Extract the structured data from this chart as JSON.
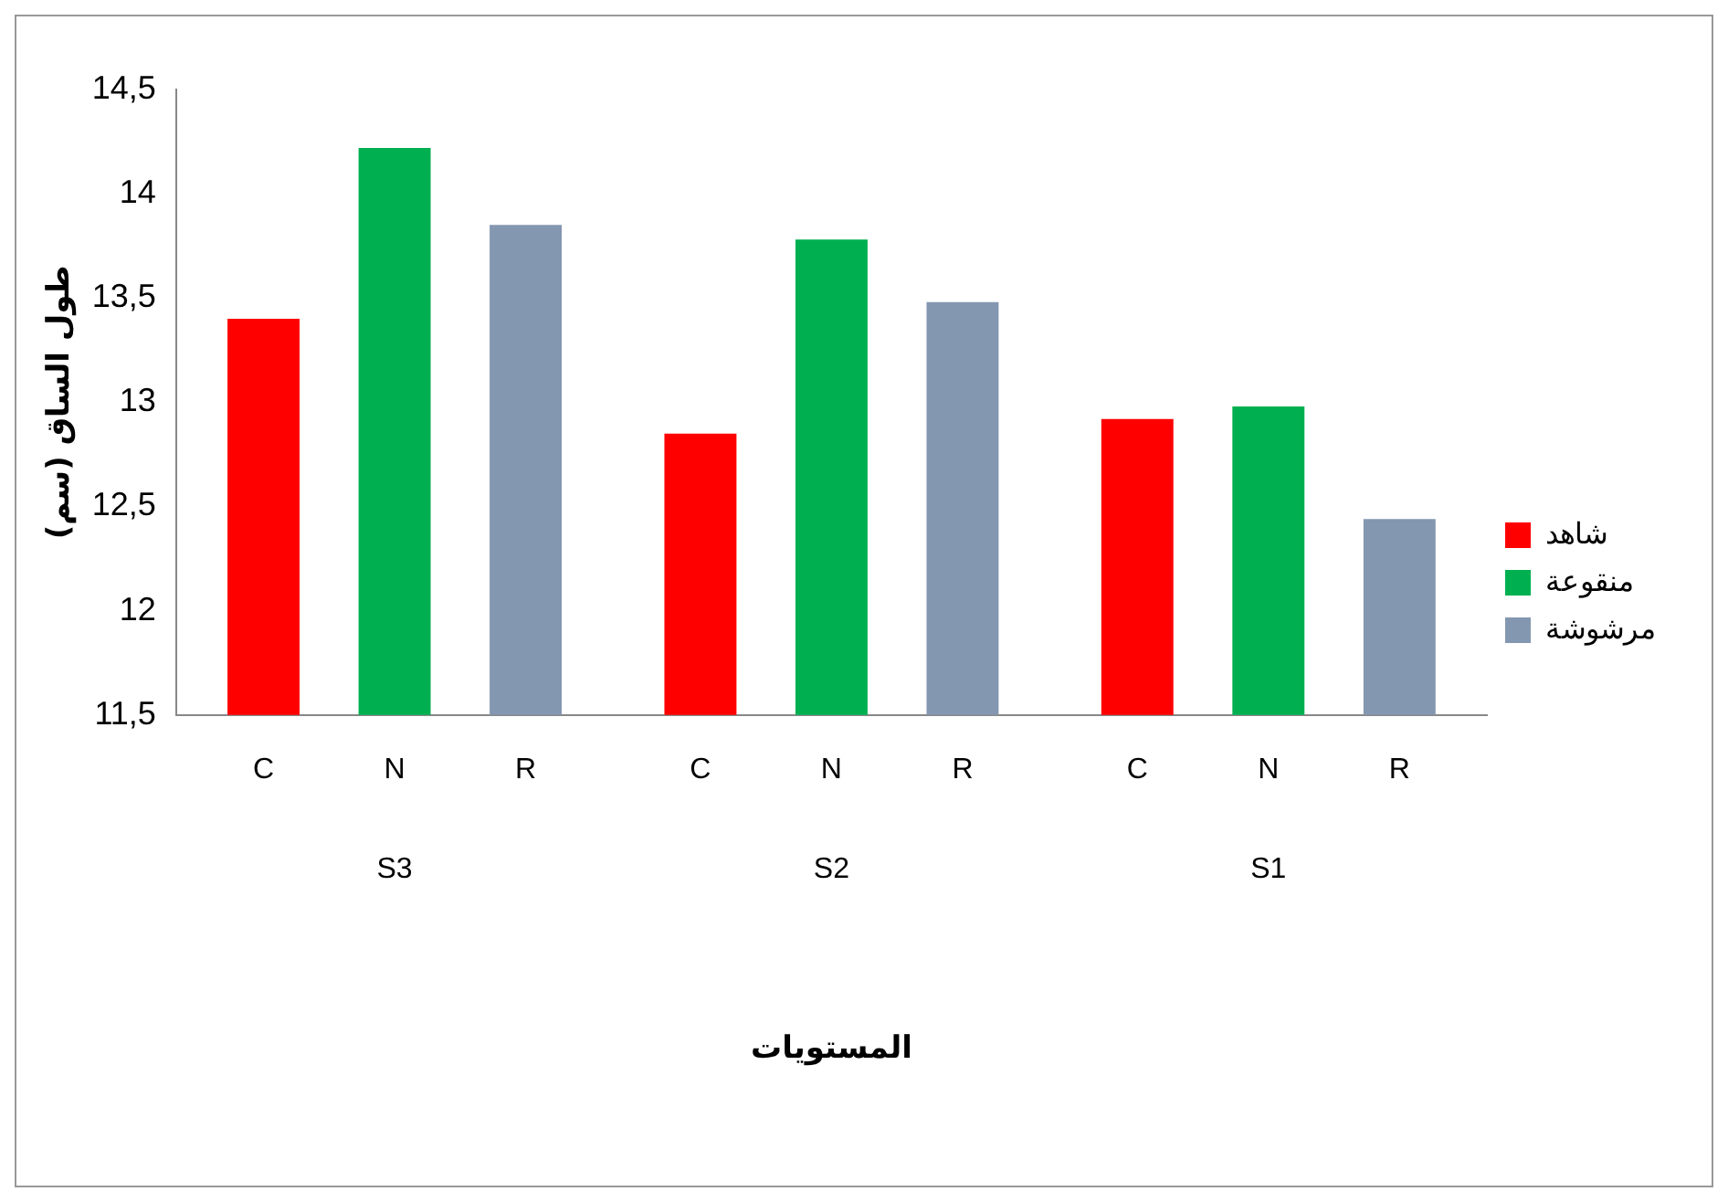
{
  "chart_data": {
    "type": "bar",
    "xlabel": "المستويات",
    "ylabel": "طول الساق (سم)",
    "categories": [
      "S3",
      "S2",
      "S1"
    ],
    "series": [
      {
        "name": "شاهد",
        "color": "#ff0000",
        "values": [
          13.4,
          12.85,
          12.92
        ]
      },
      {
        "name": "منقوعة",
        "color": "#00b050",
        "values": [
          14.22,
          13.78,
          12.98
        ]
      },
      {
        "name": "مرشوشة",
        "color": "#8497b0",
        "values": [
          13.85,
          13.48,
          12.44
        ]
      }
    ],
    "ylim": [
      11.5,
      14.5
    ],
    "yticks": [
      {
        "value": 11.5,
        "label": "11,5"
      },
      12,
      {
        "value": 12.5,
        "label": "12,5"
      },
      13,
      {
        "value": 13.5,
        "label": "13,5"
      },
      14,
      {
        "value": 14.5,
        "label": "14,5"
      }
    ],
    "annotations": [
      "C",
      "N",
      "R",
      "C",
      "N",
      "R",
      "C",
      "N",
      "R"
    ],
    "grid": false,
    "legend": "right"
  }
}
